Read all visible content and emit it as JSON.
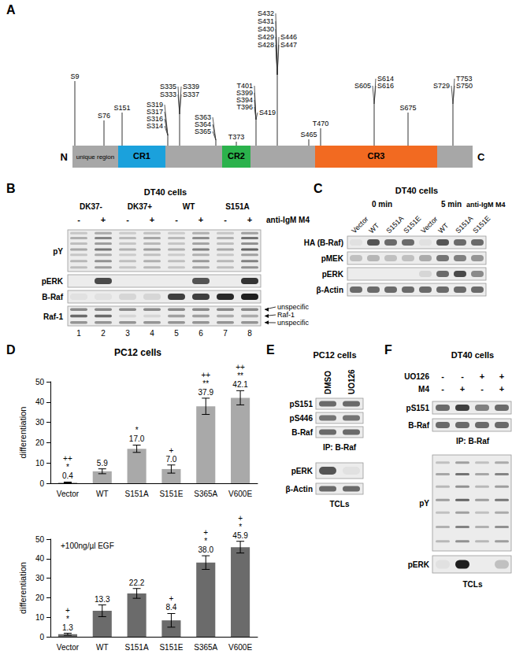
{
  "figure": {
    "A": {
      "letter": "A",
      "termini": [
        "N",
        "C"
      ],
      "domains": [
        {
          "label": "unique region",
          "color": "#a7a7a7"
        },
        {
          "label": "CR1",
          "color": "#1ba1dc"
        },
        {
          "label": "CR2",
          "color": "#2bb24c"
        },
        {
          "label": "CR3",
          "color": "#f26a21"
        }
      ],
      "site_groups": [
        [
          "S9"
        ],
        [
          "S76"
        ],
        [
          "S151"
        ],
        [
          "S319",
          "S317",
          "S316",
          "S314"
        ],
        [
          "S335",
          "S339",
          "S333",
          "S337"
        ],
        [
          "S363",
          "S364",
          "S365"
        ],
        [
          "T373"
        ],
        [
          "T401",
          "S399",
          "S394",
          "T396",
          "S419"
        ],
        [
          "S432",
          "S431",
          "S430",
          "S429",
          "S446",
          "S428",
          "S447"
        ],
        [
          "S465"
        ],
        [
          "T470"
        ],
        [
          "S605",
          "S614",
          "S616"
        ],
        [
          "S675"
        ],
        [
          "S729",
          "T753",
          "S750"
        ]
      ]
    },
    "B": {
      "letter": "B",
      "cell_line": "DT40 cells",
      "treatment": "anti-IgM M4",
      "groups": [
        "DK37-",
        "DK37+",
        "WT",
        "S151A"
      ],
      "signs": [
        "-",
        "+",
        "-",
        "+",
        "-",
        "+",
        "-",
        "+"
      ],
      "rows": [
        {
          "label": "pY",
          "bands": [
            0.35,
            0.6,
            0.3,
            0.4,
            0.3,
            0.55,
            0.35,
            0.7
          ]
        },
        {
          "label": "pERK",
          "bands": [
            0,
            0.75,
            0,
            0,
            0,
            0.7,
            0,
            0.85
          ]
        },
        {
          "label": "B-Raf",
          "bands": [
            0.05,
            0.05,
            0.1,
            0.1,
            0.8,
            0.8,
            0.9,
            0.95
          ]
        },
        {
          "label": "Raf-1",
          "bands": [
            [
              0.45,
              0.45,
              0.45,
              0.45,
              0.45,
              0.45,
              0.45,
              0.45
            ],
            [
              0.6,
              0.6,
              0.1,
              0.1,
              0.35,
              0.35,
              0.3,
              0.3
            ],
            [
              0.4,
              0.4,
              0.4,
              0.4,
              0.4,
              0.4,
              0.4,
              0.4
            ]
          ],
          "band_labels": [
            "unspecific",
            "Raf-1",
            "unspecific"
          ]
        }
      ],
      "lane_numbers": [
        1,
        2,
        3,
        4,
        5,
        6,
        7,
        8
      ]
    },
    "C": {
      "letter": "C",
      "cell_line": "DT40 cells",
      "treatment": "anti-IgM M4",
      "groups": [
        {
          "label": "0 min",
          "lanes": [
            "Vector",
            "WT",
            "S151A",
            "S151E"
          ]
        },
        {
          "label": "5 min",
          "lanes": [
            "Vector",
            "WT",
            "S151A",
            "S151E"
          ]
        }
      ],
      "rows": [
        {
          "label": "HA (B-Raf)",
          "bands": [
            0.05,
            0.7,
            0.6,
            0.6,
            0.05,
            0.7,
            0.6,
            0.6
          ]
        },
        {
          "label": "pMEK",
          "bands": [
            0.2,
            0.25,
            0.2,
            0.2,
            0.3,
            0.55,
            0.5,
            0.4
          ]
        },
        {
          "label": "pERK",
          "bands": [
            0,
            0,
            0,
            0,
            0.1,
            0.6,
            0.75,
            0.45
          ]
        },
        {
          "label": "β-Actin",
          "bands": [
            0.6,
            0.6,
            0.6,
            0.6,
            0.6,
            0.6,
            0.6,
            0.6
          ]
        }
      ]
    },
    "D": {
      "letter": "D"
    },
    "E": {
      "letter": "E",
      "cell_line": "PC12 cells",
      "lanes": [
        "DMSO",
        "UO126"
      ],
      "sections": [
        {
          "label": "IP: B-Raf",
          "rows": [
            {
              "label": "pS151",
              "bands": [
                0.6,
                0.6
              ]
            },
            {
              "label": "pS446",
              "bands": [
                0.55,
                0.55
              ]
            },
            {
              "label": "B-Raf",
              "bands": [
                0.6,
                0.6
              ]
            }
          ]
        },
        {
          "label": "TCLs",
          "rows": [
            {
              "label": "pERK",
              "bands": [
                0.7,
                0.05
              ]
            },
            {
              "label": "β-Actin",
              "bands": [
                0.6,
                0.6
              ]
            }
          ]
        }
      ]
    },
    "F": {
      "letter": "F",
      "cell_line": "DT40 cells",
      "treatments": [
        {
          "label": "UO126",
          "signs": [
            "-",
            "-",
            "+",
            "+"
          ]
        },
        {
          "label": "M4",
          "signs": [
            "-",
            "+",
            "-",
            "+"
          ]
        }
      ],
      "sections": [
        {
          "label": "IP: B-Raf",
          "rows": [
            {
              "label": "pS151",
              "bands": [
                0.6,
                0.8,
                0.5,
                0.6
              ]
            },
            {
              "label": "B-Raf",
              "bands": [
                0.6,
                0.6,
                0.6,
                0.6
              ]
            }
          ]
        },
        {
          "label": "TCLs",
          "rows": [
            {
              "label": "pY",
              "bands": [
                0.4,
                0.7,
                0.4,
                0.6
              ]
            },
            {
              "label": "pERK",
              "bands": [
                0.05,
                0.95,
                0,
                0.2
              ]
            }
          ]
        }
      ]
    }
  },
  "chart_data": [
    {
      "type": "bar",
      "title": "PC12 cells",
      "y_label": "differentiation",
      "categories": [
        "Vector",
        "WT",
        "S151A",
        "S151E",
        "S365A",
        "V600E"
      ],
      "values": [
        0.4,
        5.9,
        17.0,
        7.0,
        37.9,
        42.1
      ],
      "value_labels": [
        "0.4",
        "5.9",
        "17.0",
        "7.0",
        "37.9",
        "42.1"
      ],
      "errors": [
        0.2,
        1.2,
        1.8,
        2.0,
        4.0,
        3.5
      ],
      "annotations": [
        [
          "++",
          "*"
        ],
        [],
        [
          "*"
        ],
        [
          "+"
        ],
        [
          "++",
          "**"
        ],
        [
          "++",
          "**"
        ]
      ],
      "color": "#a9a9a9",
      "ylim": [
        0,
        50
      ],
      "yticks": [
        0,
        10,
        20,
        30,
        40,
        50
      ],
      "data_labels": true,
      "grid": false
    },
    {
      "type": "bar",
      "annotation": "+100ng/µl EGF",
      "y_label": "differentiation",
      "categories": [
        "Vector",
        "WT",
        "S151A",
        "S151E",
        "S365A",
        "V600E"
      ],
      "values": [
        1.3,
        13.3,
        22.2,
        8.4,
        38.0,
        45.9
      ],
      "value_labels": [
        "1.3",
        "13.3",
        "22.2",
        "8.4",
        "38.0",
        "45.9"
      ],
      "errors": [
        0.5,
        3.0,
        2.5,
        3.5,
        3.5,
        3.0
      ],
      "annotations": [
        [
          "+",
          "*"
        ],
        [],
        [],
        [
          "+"
        ],
        [
          "+",
          "*"
        ],
        [
          "+",
          "*"
        ]
      ],
      "color": "#6b6b6b",
      "ylim": [
        0,
        50
      ],
      "yticks": [
        0,
        10,
        20,
        30,
        40,
        50
      ],
      "data_labels": true,
      "grid": false
    }
  ]
}
